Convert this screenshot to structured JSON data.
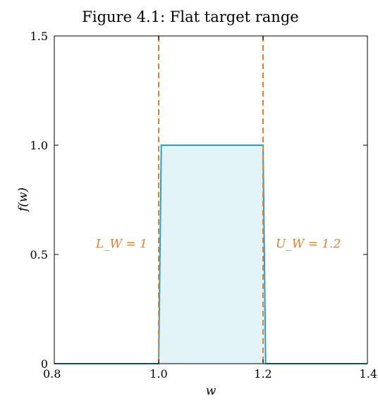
{
  "chart_data": {
    "type": "area",
    "title": "Figure 4.1: Flat target range",
    "xlabel": "w",
    "ylabel": "f(w)",
    "xlim": [
      0.8,
      1.4
    ],
    "ylim": [
      0,
      1.5
    ],
    "xticks": [
      {
        "value": 0.8,
        "label": "0.8"
      },
      {
        "value": 1.0,
        "label": "1.0"
      },
      {
        "value": 1.2,
        "label": "1.2"
      },
      {
        "value": 1.4,
        "label": "1.4"
      }
    ],
    "yticks": [
      {
        "value": 0,
        "label": "0"
      },
      {
        "value": 0.5,
        "label": "0.5"
      },
      {
        "value": 1.0,
        "label": "1.0"
      },
      {
        "value": 1.5,
        "label": "1.5"
      }
    ],
    "grid": false,
    "series": [
      {
        "x": [
          0.8,
          1.0,
          1.005,
          1.2,
          1.205,
          1.4
        ],
        "y": [
          0,
          0,
          1,
          1,
          0,
          0
        ],
        "line_color": "#1ba6c4",
        "fill_color": "#e2f4f8"
      }
    ],
    "vlines": [
      {
        "x": 1.0,
        "label": "L_W = 1",
        "label_side": "left",
        "color": "#e67e2e"
      },
      {
        "x": 1.2,
        "label": "U_W = 1.2",
        "label_side": "right",
        "color": "#e67e2e"
      }
    ]
  }
}
